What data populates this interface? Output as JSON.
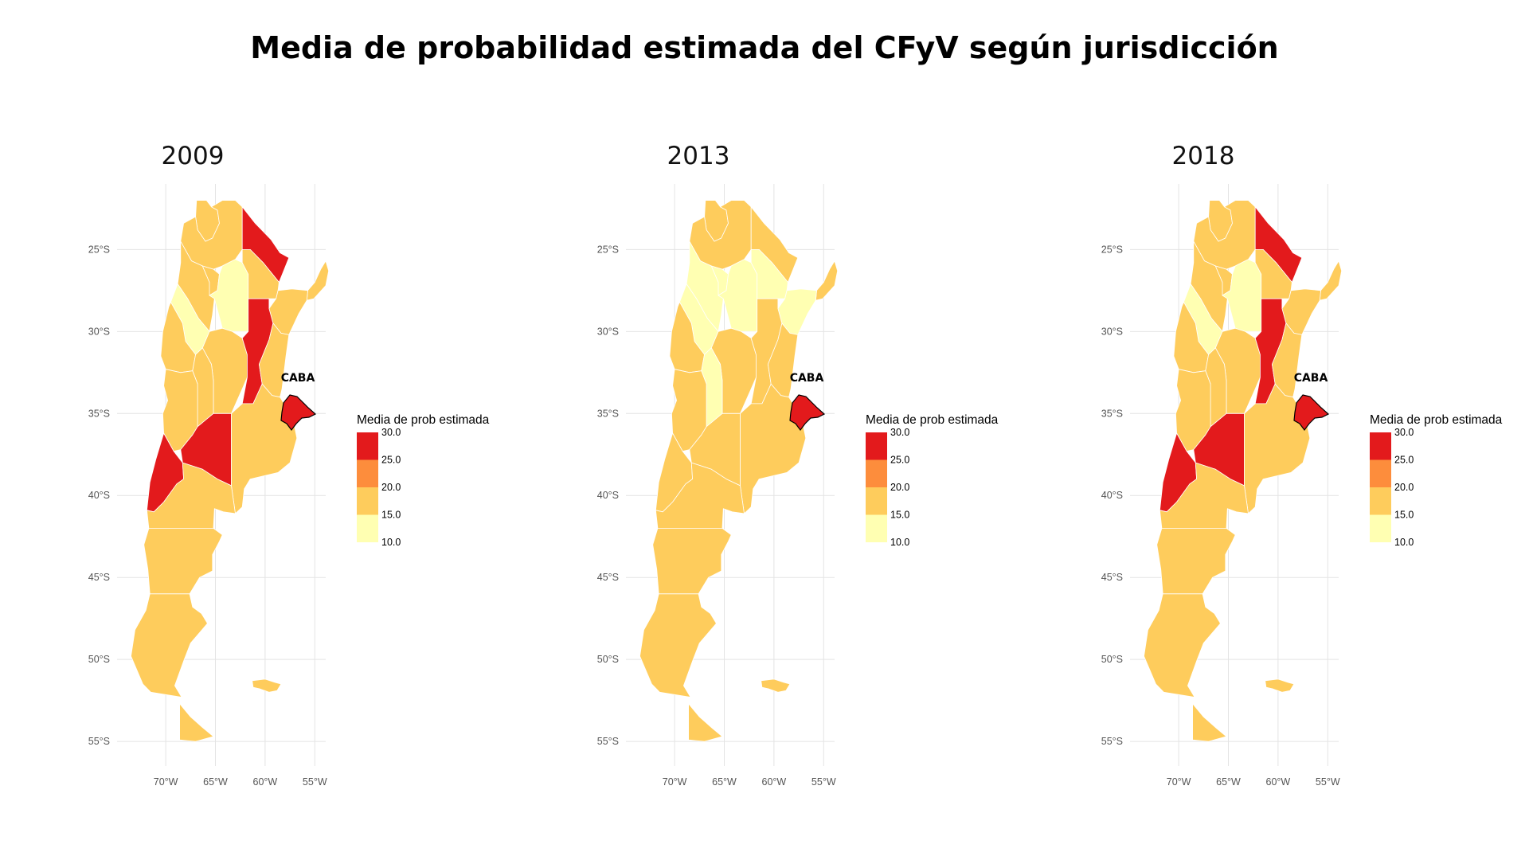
{
  "title": "Media de probabilidad estimada del CFyV  según jurisdicción",
  "colors": {
    "c30": "#e31a1c",
    "c20": "#fd8d3c",
    "c15": "#fecc5c",
    "c10": "#ffffb2"
  },
  "axes": {
    "lat_labels": [
      "25°S",
      "30°S",
      "35°S",
      "40°S",
      "45°S",
      "50°S",
      "55°S"
    ],
    "lon_labels": [
      "70°W",
      "65°W",
      "60°W",
      "55°W"
    ]
  },
  "legend": {
    "title": "Media de prob estimada",
    "labels": [
      "30.0",
      "25.0",
      "20.0",
      "15.0",
      "10.0"
    ]
  },
  "caba_label": "CABA",
  "chart_data": {
    "type": "choropleth",
    "legend_bins": [
      "10.0–15.0",
      "15.0–20.0",
      "20.0–25.0",
      "25.0–30.0+"
    ],
    "maps": [
      {
        "title": "2009",
        "regions": {
          "Jujuy": "15-20",
          "Salta": "15-20",
          "Formosa": "25-30+",
          "Misiones": "15-20",
          "Catamarca": "15-20",
          "Tucumán": "15-20",
          "Santiago del Estero": "10-15",
          "Chaco": "15-20",
          "Corrientes": "15-20",
          "La Rioja": "10-15",
          "San Juan": "15-20",
          "Córdoba": "15-20",
          "Santa Fe": "25-30+",
          "Entre Ríos": "15-20",
          "San Luis": "15-20",
          "Mendoza": "15-20",
          "Neuquén": "25-30+",
          "La Pampa": "25-30+",
          "Buenos Aires": "15-20",
          "Río Negro": "15-20",
          "Chubut": "15-20",
          "Santa Cruz": "15-20",
          "Tierra del Fuego": "15-20",
          "Malvinas": "15-20",
          "CABA": "25-30+"
        }
      },
      {
        "title": "2013",
        "regions": {
          "Jujuy": "15-20",
          "Salta": "15-20",
          "Formosa": "15-20",
          "Misiones": "15-20",
          "Catamarca": "10-15",
          "Tucumán": "10-15",
          "Santiago del Estero": "10-15",
          "Chaco": "10-15",
          "Corrientes": "10-15",
          "La Rioja": "10-15",
          "San Juan": "15-20",
          "Córdoba": "15-20",
          "Santa Fe": "15-20",
          "Entre Ríos": "15-20",
          "San Luis": "10-15",
          "Mendoza": "15-20",
          "Neuquén": "15-20",
          "La Pampa": "15-20",
          "Buenos Aires": "15-20",
          "Río Negro": "15-20",
          "Chubut": "15-20",
          "Santa Cruz": "15-20",
          "Tierra del Fuego": "15-20",
          "Malvinas": "15-20",
          "CABA": "25-30+"
        }
      },
      {
        "title": "2018",
        "regions": {
          "Jujuy": "15-20",
          "Salta": "15-20",
          "Formosa": "25-30+",
          "Misiones": "15-20",
          "Catamarca": "15-20",
          "Tucumán": "15-20",
          "Santiago del Estero": "10-15",
          "Chaco": "15-20",
          "Corrientes": "15-20",
          "La Rioja": "10-15",
          "San Juan": "15-20",
          "Córdoba": "15-20",
          "Santa Fe": "25-30+",
          "Entre Ríos": "15-20",
          "San Luis": "15-20",
          "Mendoza": "15-20",
          "Neuquén": "25-30+",
          "La Pampa": "25-30+",
          "Buenos Aires": "15-20",
          "Río Negro": "15-20",
          "Chubut": "15-20",
          "Santa Cruz": "15-20",
          "Tierra del Fuego": "15-20",
          "Malvinas": "15-20",
          "CABA": "25-30+"
        }
      }
    ]
  }
}
